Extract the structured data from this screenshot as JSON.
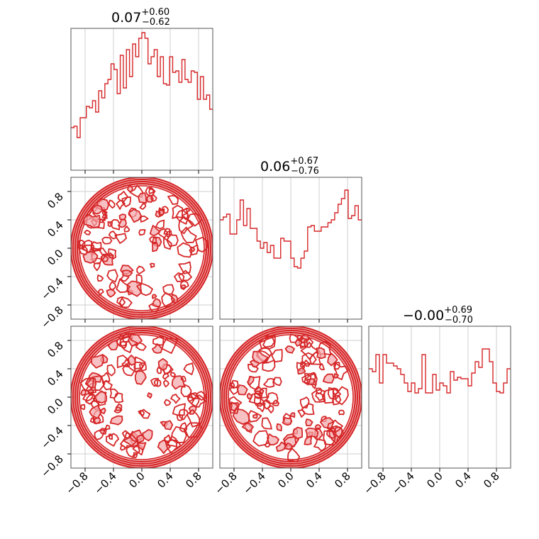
{
  "chart_data": {
    "type": "corner",
    "color": "#d62728",
    "fill_color": "#f4a6aa",
    "grid": true,
    "xlim": [
      -1,
      1
    ],
    "ylim": [
      -1,
      1
    ],
    "ticks": [
      -0.8,
      -0.4,
      0.0,
      0.4,
      0.8
    ],
    "tick_labels": [
      "−0.8",
      "−0.4",
      "0.0",
      "0.4",
      "0.8"
    ],
    "diagonal": [
      {
        "title": {
          "value": "0.07",
          "upper": "+0.60",
          "lower": "−0.62"
        },
        "histogram": {
          "bin_range": [
            -1,
            1
          ],
          "values": [
            0.3,
            0.31,
            0.23,
            0.37,
            0.37,
            0.45,
            0.44,
            0.49,
            0.41,
            0.56,
            0.51,
            0.61,
            0.64,
            0.75,
            0.71,
            0.54,
            0.81,
            0.58,
            0.85,
            0.66,
            0.89,
            0.8,
            0.93,
            0.97,
            0.93,
            0.75,
            0.8,
            0.85,
            0.66,
            0.8,
            0.61,
            0.6,
            0.8,
            0.69,
            0.7,
            0.62,
            0.78,
            0.64,
            0.62,
            0.7,
            0.69,
            0.5,
            0.66,
            0.5,
            0.53,
            0.43
          ]
        }
      },
      {
        "title": {
          "value": "0.06",
          "upper": "+0.67",
          "lower": "−0.76"
        },
        "histogram": {
          "bin_range": [
            -1,
            1
          ],
          "values": [
            0.7,
            0.72,
            0.74,
            0.6,
            0.6,
            0.7,
            0.84,
            0.66,
            0.78,
            0.64,
            0.64,
            0.55,
            0.5,
            0.54,
            0.47,
            0.52,
            0.43,
            0.43,
            0.57,
            0.55,
            0.55,
            0.43,
            0.37,
            0.36,
            0.43,
            0.48,
            0.65,
            0.66,
            0.62,
            0.62,
            0.65,
            0.65,
            0.68,
            0.7,
            0.75,
            0.81,
            0.85,
            0.91,
            0.71,
            0.73,
            0.8,
            0.7
          ]
        }
      },
      {
        "title": {
          "value": "−0.00",
          "upper": "+0.69",
          "lower": "−0.70"
        },
        "histogram": {
          "bin_range": [
            -1,
            1
          ],
          "values": [
            0.7,
            0.68,
            0.8,
            0.6,
            0.8,
            0.74,
            0.74,
            0.72,
            0.7,
            0.66,
            0.6,
            0.54,
            0.6,
            0.53,
            0.56,
            0.8,
            0.53,
            0.53,
            0.66,
            0.55,
            0.6,
            0.58,
            0.53,
            0.68,
            0.62,
            0.64,
            0.63,
            0.63,
            0.58,
            0.67,
            0.75,
            0.71,
            0.84,
            0.84,
            0.75,
            0.6,
            0.54,
            0.53,
            0.6,
            0.7
          ]
        }
      }
    ],
    "contour_panels": [
      {
        "row": 1,
        "col": 0,
        "seed": 11
      },
      {
        "row": 2,
        "col": 0,
        "seed": 23
      },
      {
        "row": 2,
        "col": 1,
        "seed": 37
      }
    ]
  }
}
